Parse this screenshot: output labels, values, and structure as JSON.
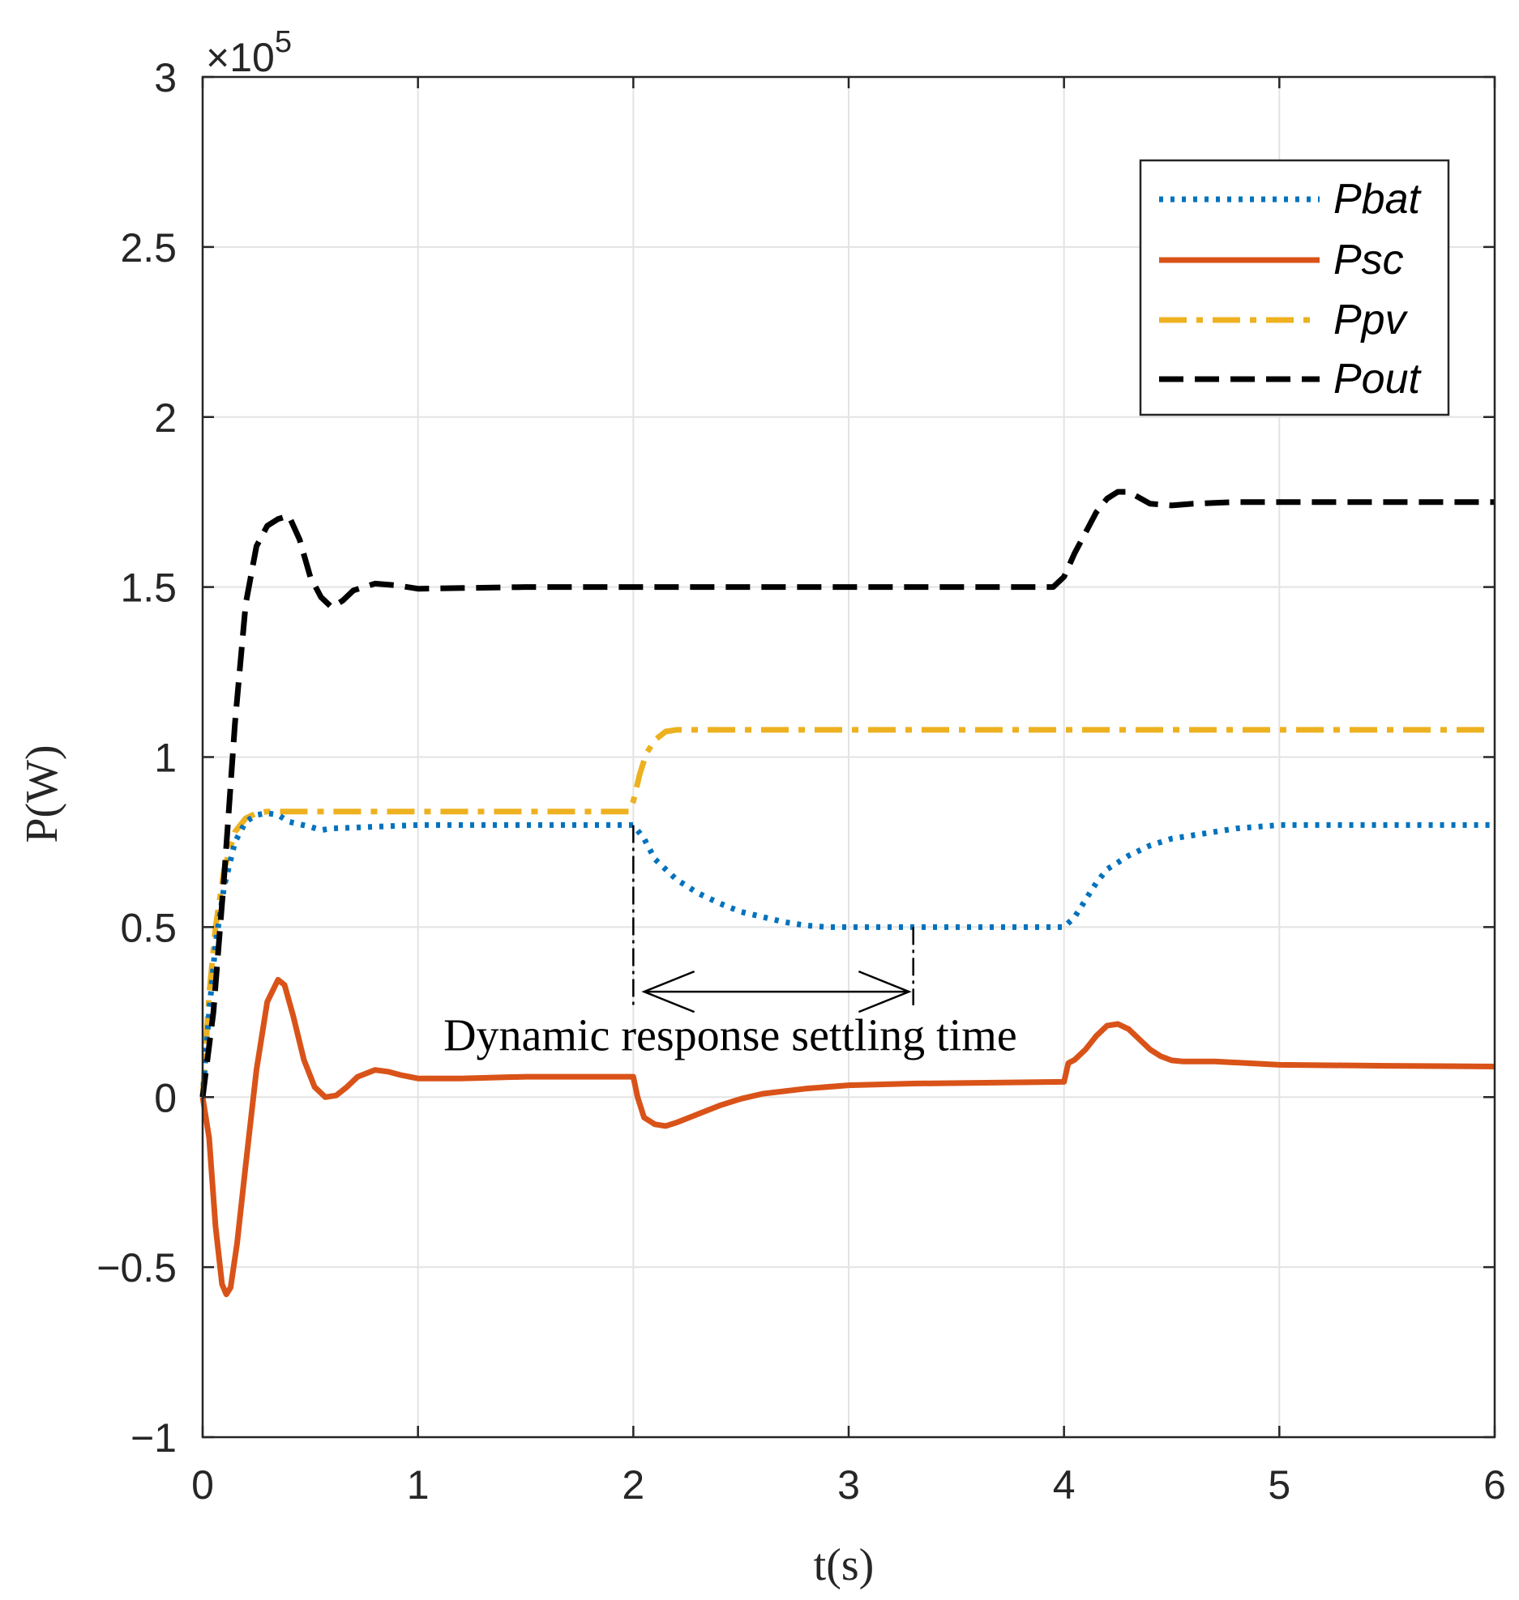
{
  "chart_data": {
    "type": "line",
    "title": "",
    "xlabel": "t(s)",
    "ylabel": "P(W)",
    "y_exponent_label": "×10",
    "y_exponent_power": "5",
    "xlim": [
      0,
      6
    ],
    "ylim": [
      -1,
      3
    ],
    "grid": true,
    "legend_position": "top-right",
    "xticks": [
      0,
      1,
      2,
      3,
      4,
      5,
      6
    ],
    "xtick_labels": [
      "0",
      "1",
      "2",
      "3",
      "4",
      "5",
      "6"
    ],
    "yticks": [
      -1,
      -0.5,
      0,
      0.5,
      1,
      1.5,
      2,
      2.5,
      3
    ],
    "ytick_labels": [
      "−1",
      "−0.5",
      "0",
      "0.5",
      "1",
      "1.5",
      "2",
      "2.5",
      "3"
    ],
    "series": [
      {
        "name": "Pbat",
        "color": "#0072BD",
        "style": "dotted",
        "x": [
          0,
          0.03,
          0.06,
          0.1,
          0.15,
          0.2,
          0.25,
          0.3,
          0.35,
          0.4,
          0.5,
          0.55,
          0.6,
          0.8,
          1.0,
          1.5,
          2.0,
          2.05,
          2.1,
          2.2,
          2.3,
          2.4,
          2.5,
          2.6,
          2.7,
          2.8,
          2.9,
          3.0,
          3.1,
          3.3,
          3.5,
          4.0,
          4.05,
          4.1,
          4.15,
          4.2,
          4.3,
          4.4,
          4.5,
          4.6,
          4.7,
          4.8,
          5.0,
          5.5,
          6.0
        ],
        "y": [
          0,
          0.25,
          0.45,
          0.62,
          0.75,
          0.81,
          0.83,
          0.835,
          0.83,
          0.81,
          0.795,
          0.785,
          0.79,
          0.795,
          0.8,
          0.8,
          0.8,
          0.76,
          0.7,
          0.64,
          0.6,
          0.57,
          0.545,
          0.53,
          0.515,
          0.505,
          0.5,
          0.5,
          0.5,
          0.5,
          0.5,
          0.5,
          0.53,
          0.58,
          0.63,
          0.67,
          0.71,
          0.74,
          0.76,
          0.77,
          0.78,
          0.79,
          0.8,
          0.8,
          0.8
        ]
      },
      {
        "name": "Psc",
        "color": "#D95319",
        "style": "solid",
        "x": [
          0,
          0.03,
          0.06,
          0.09,
          0.11,
          0.13,
          0.16,
          0.2,
          0.25,
          0.3,
          0.35,
          0.38,
          0.42,
          0.47,
          0.52,
          0.57,
          0.62,
          0.67,
          0.72,
          0.8,
          0.86,
          0.92,
          1.0,
          1.2,
          1.5,
          2.0,
          2.02,
          2.05,
          2.1,
          2.15,
          2.2,
          2.3,
          2.4,
          2.5,
          2.6,
          2.8,
          3.0,
          3.3,
          3.6,
          4.0,
          4.02,
          4.05,
          4.1,
          4.15,
          4.2,
          4.25,
          4.3,
          4.35,
          4.4,
          4.45,
          4.5,
          4.55,
          4.7,
          5.0,
          5.5,
          6.0
        ],
        "y": [
          0,
          -0.12,
          -0.38,
          -0.55,
          -0.58,
          -0.56,
          -0.43,
          -0.2,
          0.08,
          0.28,
          0.345,
          0.33,
          0.24,
          0.11,
          0.03,
          0.0,
          0.005,
          0.03,
          0.06,
          0.08,
          0.075,
          0.065,
          0.055,
          0.055,
          0.06,
          0.06,
          0.0,
          -0.06,
          -0.08,
          -0.085,
          -0.075,
          -0.05,
          -0.025,
          -0.005,
          0.01,
          0.025,
          0.035,
          0.04,
          0.042,
          0.045,
          0.1,
          0.11,
          0.14,
          0.18,
          0.21,
          0.215,
          0.2,
          0.17,
          0.14,
          0.12,
          0.108,
          0.105,
          0.105,
          0.095,
          0.092,
          0.09
        ]
      },
      {
        "name": "Ppv",
        "color": "#EDB120",
        "style": "dashdot",
        "x": [
          0,
          0.03,
          0.06,
          0.1,
          0.15,
          0.2,
          0.25,
          0.3,
          0.4,
          1.0,
          1.5,
          1.98,
          2.0,
          2.03,
          2.06,
          2.1,
          2.15,
          2.2,
          2.3,
          2.5,
          3.0,
          4.0,
          5.0,
          6.0
        ],
        "y": [
          0,
          0.3,
          0.5,
          0.67,
          0.78,
          0.82,
          0.835,
          0.84,
          0.84,
          0.84,
          0.84,
          0.84,
          0.87,
          0.95,
          1.01,
          1.05,
          1.075,
          1.08,
          1.08,
          1.08,
          1.08,
          1.08,
          1.08,
          1.08
        ]
      },
      {
        "name": "Pout",
        "color": "#000000",
        "style": "dashed",
        "x": [
          0,
          0.05,
          0.1,
          0.15,
          0.2,
          0.25,
          0.3,
          0.35,
          0.4,
          0.45,
          0.5,
          0.55,
          0.6,
          0.65,
          0.7,
          0.8,
          0.9,
          1.0,
          1.5,
          2.0,
          3.0,
          3.5,
          3.95,
          4.0,
          4.05,
          4.1,
          4.15,
          4.2,
          4.25,
          4.3,
          4.4,
          4.5,
          4.6,
          4.8,
          5.0,
          5.5,
          6.0
        ],
        "y": [
          0,
          0.25,
          0.65,
          1.1,
          1.45,
          1.62,
          1.68,
          1.7,
          1.71,
          1.64,
          1.53,
          1.47,
          1.44,
          1.46,
          1.49,
          1.51,
          1.505,
          1.495,
          1.5,
          1.5,
          1.5,
          1.5,
          1.5,
          1.53,
          1.6,
          1.66,
          1.72,
          1.76,
          1.78,
          1.78,
          1.745,
          1.74,
          1.745,
          1.75,
          1.75,
          1.75,
          1.75
        ]
      }
    ],
    "annotations": [
      {
        "text": "Dynamic response settling time",
        "x": 2.45,
        "y": 0.18
      }
    ],
    "markers": {
      "vline_start": {
        "x": 2.0,
        "y_from": 0.8,
        "y_to": 0.27
      },
      "vline_end": {
        "x": 3.3,
        "y_from": 0.5,
        "y_to": 0.27
      },
      "arrow": {
        "x_from": 2.05,
        "x_to": 3.28,
        "y": 0.31
      }
    }
  }
}
